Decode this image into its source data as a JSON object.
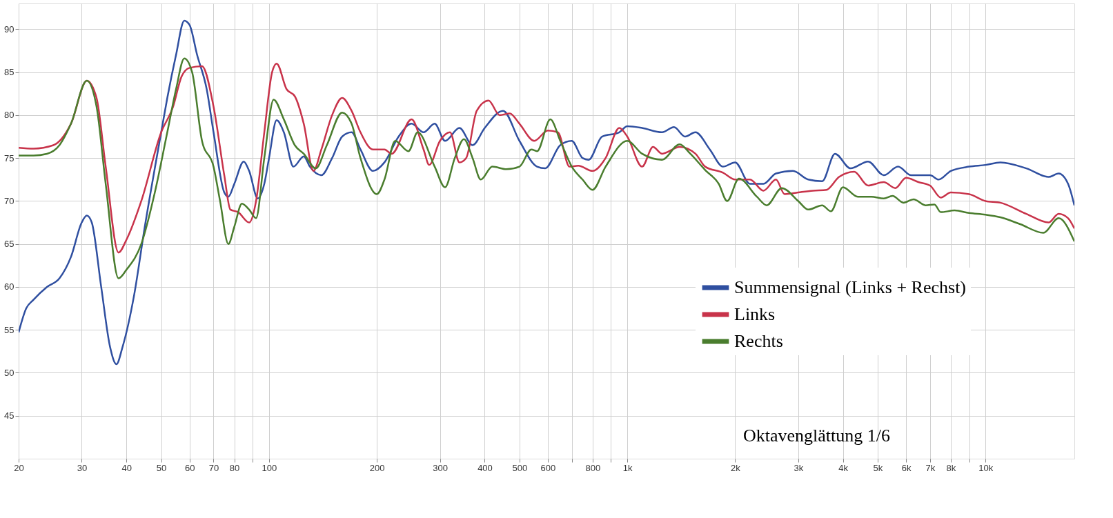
{
  "chart_data": {
    "type": "line",
    "log": "x",
    "grid": true,
    "legend": "bottom right",
    "marker": "none",
    "line_style": "solid",
    "xlim": [
      20,
      17700
    ],
    "ylim": [
      40,
      93
    ],
    "xticks": [
      20,
      30,
      40,
      50,
      60,
      70,
      80,
      {
        "value": 90,
        "label": null
      },
      100,
      200,
      300,
      400,
      500,
      600,
      {
        "value": 700,
        "label": null
      },
      800,
      {
        "value": 900,
        "label": null
      },
      {
        "value": 1000,
        "label": "1k"
      },
      {
        "value": 2000,
        "label": "2k"
      },
      {
        "value": 3000,
        "label": "3k"
      },
      {
        "value": 4000,
        "label": "4k"
      },
      {
        "value": 5000,
        "label": "5k"
      },
      {
        "value": 6000,
        "label": "6k"
      },
      {
        "value": 7000,
        "label": "7k"
      },
      {
        "value": 8000,
        "label": "8k"
      },
      {
        "value": 9000,
        "label": null
      },
      {
        "value": 10000,
        "label": "10k"
      }
    ],
    "yticks": [
      45,
      50,
      55,
      60,
      65,
      70,
      75,
      80,
      85,
      90
    ],
    "annotations": [
      "Oktavenglättung 1/6"
    ],
    "series": [
      {
        "name": "Summensignal (Links + Rechst)",
        "color": "#2f4fa0",
        "x": [
          20,
          21,
          22,
          24,
          26,
          28,
          30,
          31,
          32,
          34,
          36,
          37.5,
          39,
          42,
          45,
          50,
          52,
          55,
          58,
          60,
          63,
          67,
          70,
          75,
          77,
          80,
          85,
          88,
          93,
          97,
          100,
          105,
          110,
          117,
          125,
          130,
          140,
          150,
          160,
          170,
          180,
          195,
          210,
          230,
          250,
          270,
          290,
          310,
          340,
          370,
          400,
          450,
          500,
          560,
          590,
          650,
          700,
          750,
          780,
          850,
          950,
          1000,
          1100,
          1250,
          1350,
          1450,
          1550,
          1700,
          1850,
          2000,
          2200,
          2400,
          2600,
          2900,
          3200,
          3500,
          3800,
          4200,
          4700,
          5200,
          5700,
          6200,
          7000,
          7400,
          8000,
          9000,
          10000,
          11000,
          13000,
          15000,
          16000,
          17000,
          17700
        ],
        "values": [
          54.7,
          57.5,
          58.5,
          60,
          61,
          63.5,
          67.5,
          68.3,
          67.5,
          60,
          53,
          51,
          53,
          59,
          67,
          78,
          82,
          87,
          91,
          90.5,
          87,
          83,
          78,
          71,
          70.5,
          72,
          74.6,
          73.5,
          70.3,
          72,
          75,
          79.4,
          78,
          74,
          75.2,
          74,
          73,
          75,
          77.5,
          78,
          76,
          73.5,
          74.5,
          77.5,
          79,
          78,
          79,
          77,
          78.5,
          76.5,
          78.5,
          80.5,
          77,
          74,
          73.8,
          76.5,
          77,
          75,
          74.8,
          77.5,
          78,
          78.7,
          78.5,
          78,
          78.6,
          77.5,
          78,
          76,
          74,
          74.5,
          72,
          72,
          73.2,
          73.5,
          72.5,
          72.3,
          75.5,
          73.8,
          74.6,
          73,
          74,
          73,
          73,
          72.5,
          73.5,
          74,
          74.2,
          74.5,
          73.8,
          72.8,
          73.2,
          72,
          69.5
        ]
      },
      {
        "name": "Links",
        "color": "#c8334a",
        "x": [
          20,
          22,
          25,
          28,
          31,
          33,
          35,
          38,
          40,
          44,
          50,
          54,
          57,
          60,
          65,
          70,
          75,
          78,
          82,
          88,
          92,
          97,
          102,
          105,
          112,
          118,
          125,
          133,
          140,
          150,
          160,
          170,
          180,
          195,
          210,
          220,
          250,
          270,
          280,
          300,
          320,
          340,
          355,
          380,
          410,
          440,
          470,
          500,
          550,
          600,
          640,
          690,
          730,
          800,
          870,
          950,
          1000,
          1100,
          1180,
          1250,
          1400,
          1550,
          1650,
          1850,
          2000,
          2200,
          2400,
          2600,
          2750,
          3000,
          3300,
          3600,
          3900,
          4300,
          4700,
          5200,
          5600,
          6000,
          6500,
          7000,
          7500,
          8000,
          9000,
          10000,
          11000,
          13000,
          15000,
          16000,
          17000,
          17700
        ],
        "values": [
          76.2,
          76.1,
          76.5,
          79,
          84,
          82,
          74,
          64,
          65.5,
          70,
          78,
          81,
          84.5,
          85.5,
          85.7,
          81,
          73,
          69,
          68.7,
          67.5,
          70,
          78,
          85,
          86,
          83,
          82.2,
          79,
          73.5,
          76,
          80,
          82,
          80.5,
          78,
          76,
          76,
          75.5,
          79.5,
          76,
          74.2,
          77,
          78,
          74.5,
          75,
          80.5,
          81.7,
          80,
          80.2,
          79,
          77,
          78.2,
          78,
          74,
          74.1,
          73.5,
          75,
          78.5,
          77.5,
          74,
          76.3,
          75.5,
          76.3,
          75.5,
          74,
          73.3,
          72.5,
          72.5,
          71.2,
          72.5,
          70.8,
          71,
          71.2,
          71.3,
          72.8,
          73.4,
          71.8,
          72.2,
          71.5,
          72.7,
          72.2,
          71.8,
          70.4,
          71,
          70.8,
          70,
          69.8,
          68.5,
          67.5,
          68.5,
          68,
          66.8
        ]
      },
      {
        "name": "Rechts",
        "color": "#4a7d2e",
        "x": [
          20,
          22,
          24,
          26,
          28,
          31,
          33,
          35,
          38,
          40,
          44,
          48,
          52,
          55,
          58,
          61,
          65,
          70,
          73,
          77,
          80,
          84,
          88,
          92,
          97,
          103,
          110,
          118,
          125,
          135,
          145,
          160,
          170,
          180,
          200,
          210,
          225,
          245,
          260,
          290,
          310,
          330,
          350,
          370,
          390,
          420,
          460,
          500,
          540,
          560,
          610,
          650,
          700,
          750,
          800,
          870,
          1000,
          1100,
          1250,
          1400,
          1500,
          1650,
          1800,
          1900,
          2050,
          2300,
          2450,
          2700,
          3000,
          3200,
          3500,
          3700,
          4000,
          4400,
          4800,
          5200,
          5500,
          5900,
          6300,
          6800,
          7200,
          7500,
          8200,
          9000,
          10000,
          11000,
          12500,
          14500,
          16000,
          17700
        ],
        "values": [
          75.3,
          75.3,
          75.5,
          76.5,
          79,
          84,
          81,
          72,
          61,
          62,
          65,
          71,
          78,
          83,
          86.6,
          85,
          77,
          74,
          70,
          65,
          67,
          69.7,
          69,
          68,
          75,
          81.8,
          79.5,
          76.5,
          75.5,
          73.8,
          76.5,
          80.3,
          79,
          75,
          70.8,
          72.5,
          77,
          75.8,
          78,
          74,
          71.6,
          75,
          77.2,
          75,
          72.5,
          74,
          73.7,
          74,
          76,
          75.8,
          79.5,
          77,
          74,
          72.5,
          71.3,
          74,
          77,
          75.5,
          74.8,
          76.6,
          75.5,
          73.6,
          72,
          70,
          72.6,
          70.5,
          69.5,
          71.5,
          70,
          69,
          69.5,
          68.8,
          71.6,
          70.5,
          70.5,
          70.3,
          70.6,
          69.8,
          70.2,
          69.5,
          69.6,
          68.7,
          68.9,
          68.6,
          68.4,
          68.1,
          67.3,
          66.3,
          68,
          65.3
        ]
      }
    ]
  }
}
